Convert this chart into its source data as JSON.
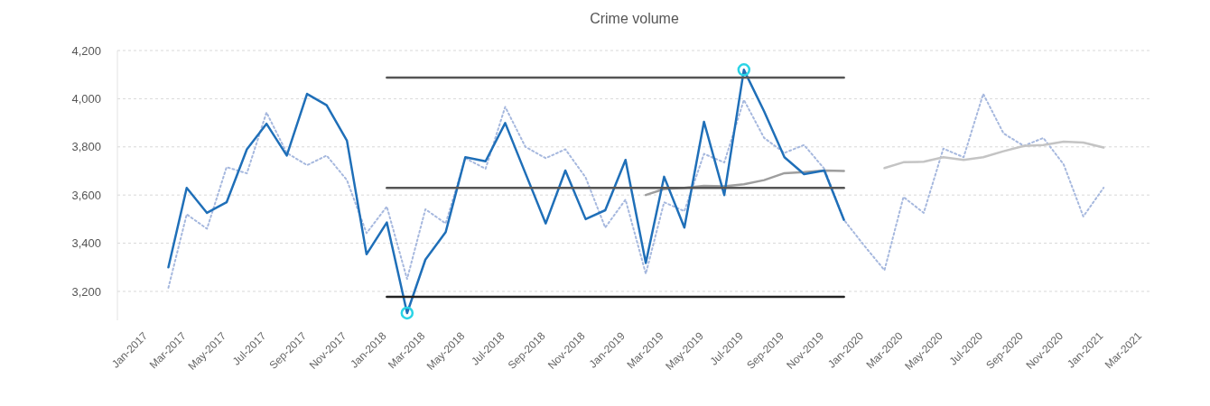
{
  "chart_data": {
    "type": "line",
    "title": "Crime volume",
    "xlim": [
      "2016-11-15",
      "2021-03-15"
    ],
    "xticks": [
      {
        "value": "2017-01",
        "label": "Jan-2017"
      },
      {
        "value": "2017-03",
        "label": "Mar-2017"
      },
      {
        "value": "2017-05",
        "label": "May-2017"
      },
      {
        "value": "2017-07",
        "label": "Jul-2017"
      },
      {
        "value": "2017-09",
        "label": "Sep-2017"
      },
      {
        "value": "2017-11",
        "label": "Nov-2017"
      },
      {
        "value": "2018-01",
        "label": "Jan-2018"
      },
      {
        "value": "2018-03",
        "label": "Mar-2018"
      },
      {
        "value": "2018-05",
        "label": "May-2018"
      },
      {
        "value": "2018-07",
        "label": "Jul-2018"
      },
      {
        "value": "2018-09",
        "label": "Sep-2018"
      },
      {
        "value": "2018-11",
        "label": "Nov-2018"
      },
      {
        "value": "2019-01",
        "label": "Jan-2019"
      },
      {
        "value": "2019-03",
        "label": "Mar-2019"
      },
      {
        "value": "2019-05",
        "label": "May-2019"
      },
      {
        "value": "2019-07",
        "label": "Jul-2019"
      },
      {
        "value": "2019-09",
        "label": "Sep-2019"
      },
      {
        "value": "2019-11",
        "label": "Nov-2019"
      },
      {
        "value": "2020-01",
        "label": "Jan-2020"
      },
      {
        "value": "2020-03",
        "label": "Mar-2020"
      },
      {
        "value": "2020-05",
        "label": "May-2020"
      },
      {
        "value": "2020-07",
        "label": "Jul-2020"
      },
      {
        "value": "2020-09",
        "label": "Sep-2020"
      },
      {
        "value": "2020-11",
        "label": "Nov-2020"
      },
      {
        "value": "2021-01",
        "label": "Jan-2021"
      },
      {
        "value": "2021-03",
        "label": "Mar-2021"
      }
    ],
    "ylim": [
      3080,
      4200
    ],
    "yticks": [
      {
        "value": 3200,
        "label": "3,200"
      },
      {
        "value": 3400,
        "label": "3,400"
      },
      {
        "value": 3600,
        "label": "3,600"
      },
      {
        "value": 3800,
        "label": "3,800"
      },
      {
        "value": 4000,
        "label": "4,000"
      },
      {
        "value": 4200,
        "label": "4,200"
      }
    ],
    "grid": "y",
    "series": [
      {
        "color": "#a6b8de",
        "line_style": "dotted",
        "x": [
          "2017-02",
          "2017-03",
          "2017-04",
          "2017-05",
          "2017-06",
          "2017-07",
          "2017-08",
          "2017-09",
          "2017-10",
          "2017-11",
          "2017-12",
          "2018-01",
          "2018-02",
          "2018-03",
          "2018-04",
          "2018-05",
          "2018-06",
          "2018-07",
          "2018-08",
          "2018-09",
          "2018-10",
          "2018-11",
          "2018-12",
          "2019-01",
          "2019-02",
          "2019-03",
          "2019-04",
          "2019-05",
          "2019-06",
          "2019-07",
          "2019-08",
          "2019-09",
          "2019-10",
          "2019-11",
          "2019-12",
          "2020-01",
          "2020-02",
          "2020-03",
          "2020-04",
          "2020-05",
          "2020-06",
          "2020-07",
          "2020-08",
          "2020-09",
          "2020-10",
          "2020-11",
          "2020-12",
          "2021-01"
        ],
        "values": [
          3215,
          3520,
          3460,
          3716,
          3690,
          3943,
          3775,
          3724,
          3764,
          3662,
          3442,
          3552,
          3251,
          3541,
          3482,
          3753,
          3709,
          3966,
          3800,
          3753,
          3790,
          3673,
          3465,
          3581,
          3273,
          3570,
          3533,
          3771,
          3735,
          3995,
          3837,
          3775,
          3808,
          3709,
          3497,
          3390,
          3288,
          3592,
          3526,
          3793,
          3757,
          4020,
          3856,
          3804,
          3837,
          3727,
          3511,
          3630
        ]
      },
      {
        "type": "line",
        "color": "#9e9e9e",
        "line_style": "solid",
        "x": [
          "2019-02",
          "2019-03",
          "2019-04",
          "2019-05",
          "2019-06",
          "2019-07",
          "2019-08",
          "2019-09",
          "2019-10",
          "2019-11",
          "2019-12"
        ],
        "values": [
          3600,
          3625,
          3630,
          3638,
          3636,
          3645,
          3662,
          3691,
          3695,
          3702,
          3700
        ]
      },
      {
        "type": "line",
        "color": "#c4c4c4",
        "line_style": "solid",
        "x": [
          "2020-02",
          "2020-03",
          "2020-04",
          "2020-05",
          "2020-06",
          "2020-07",
          "2020-08",
          "2020-09",
          "2020-10",
          "2020-11",
          "2020-12",
          "2021-01"
        ],
        "values": [
          3712,
          3736,
          3738,
          3757,
          3746,
          3757,
          3782,
          3804,
          3808,
          3822,
          3818,
          3797
        ]
      },
      {
        "type": "line",
        "color": "#1f6fb8",
        "line_style": "solid",
        "x": [
          "2017-02",
          "2017-03",
          "2017-04",
          "2017-05",
          "2017-06",
          "2017-07",
          "2017-08",
          "2017-09",
          "2017-10",
          "2017-11",
          "2017-12",
          "2018-01",
          "2018-02",
          "2018-03",
          "2018-04",
          "2018-05",
          "2018-06",
          "2018-07",
          "2018-08",
          "2018-09",
          "2018-10",
          "2018-11",
          "2018-12",
          "2019-01",
          "2019-02",
          "2019-03",
          "2019-04",
          "2019-05",
          "2019-06",
          "2019-07",
          "2019-08",
          "2019-09",
          "2019-10",
          "2019-11",
          "2019-12"
        ],
        "values": [
          3300,
          3630,
          3526,
          3570,
          3790,
          3896,
          3764,
          4020,
          3973,
          3826,
          3354,
          3486,
          3110,
          3332,
          3446,
          3757,
          3740,
          3899,
          3690,
          3482,
          3702,
          3500,
          3537,
          3746,
          3318,
          3676,
          3465,
          3904,
          3600,
          4120,
          3947,
          3757,
          3687,
          3702,
          3497
        ]
      },
      {
        "type": "line",
        "color": "#555555",
        "line_style": "solid",
        "x": [
          "2018-01",
          "2019-12"
        ],
        "values": [
          4088,
          4088
        ]
      },
      {
        "type": "line",
        "color": "#555555",
        "line_style": "solid",
        "x": [
          "2018-01",
          "2019-12"
        ],
        "values": [
          3630,
          3630
        ]
      },
      {
        "type": "line",
        "color": "#222222",
        "line_style": "solid",
        "x": [
          "2018-01",
          "2019-12"
        ],
        "values": [
          3177,
          3177
        ]
      },
      {
        "type": "scatter",
        "color": "#2ad4e6",
        "marker": "circle",
        "x": [
          "2018-02",
          "2019-07"
        ],
        "values": [
          3110,
          4120
        ]
      }
    ]
  }
}
